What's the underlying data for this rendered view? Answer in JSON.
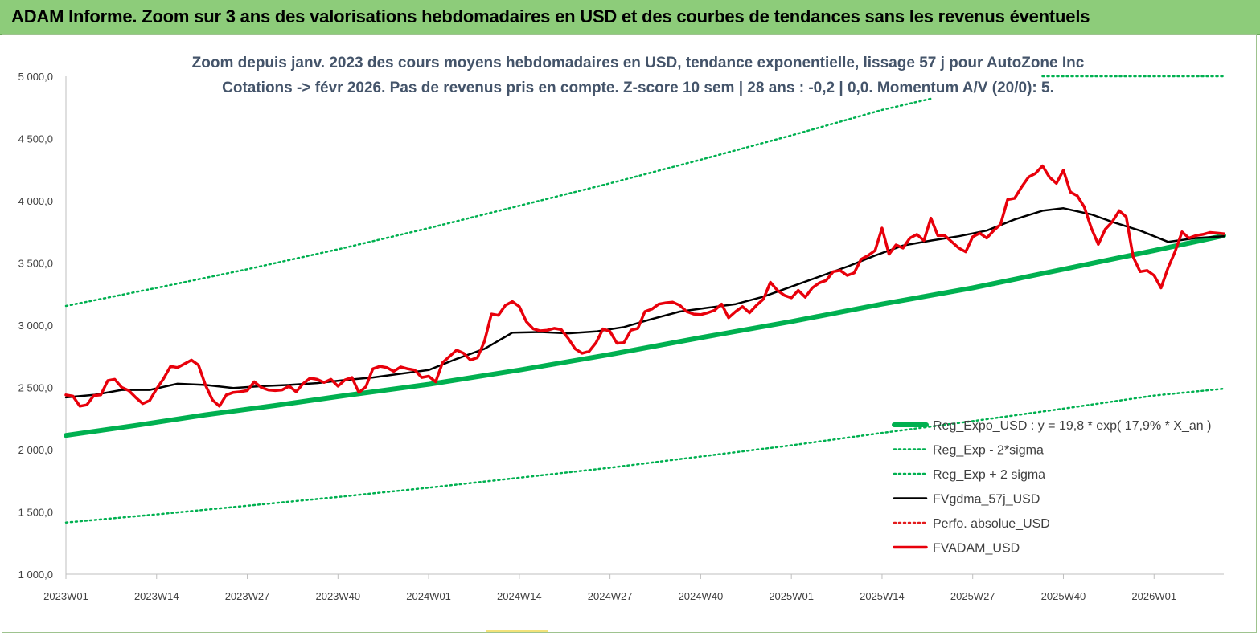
{
  "header": {
    "title": "ADAM Informe. Zoom sur 3 ans des valorisations hebdomadaires en USD et des courbes de tendances sans les revenus éventuels"
  },
  "chart_data": {
    "type": "line",
    "title": "Zoom depuis janv. 2023 des cours moyens hebdomadaires en USD, tendance exponentielle, lissage 57 j pour AutoZone Inc",
    "subtitle": "Cotations -> févr 2026.  Pas de revenus pris en compte. Z-score 10 sem  | 28 ans : -0,2 | 0,0. Momentum A/V (20/0): 5.",
    "xlabel": "",
    "ylabel": "",
    "ylim": [
      1000,
      5000
    ],
    "y_ticks": [
      "1 000,0",
      "1 500,0",
      "2 000,0",
      "2 500,0",
      "3 000,0",
      "3 500,0",
      "4 000,0",
      "4 500,0",
      "5 000,0"
    ],
    "x_range": [
      0,
      166
    ],
    "x_ticks": [
      {
        "i": 0,
        "label": "2023W01"
      },
      {
        "i": 13,
        "label": "2023W14"
      },
      {
        "i": 26,
        "label": "2023W27"
      },
      {
        "i": 39,
        "label": "2023W40"
      },
      {
        "i": 52,
        "label": "2024W01"
      },
      {
        "i": 65,
        "label": "2024W14"
      },
      {
        "i": 78,
        "label": "2024W27"
      },
      {
        "i": 91,
        "label": "2024W40"
      },
      {
        "i": 104,
        "label": "2025W01"
      },
      {
        "i": 117,
        "label": "2025W14"
      },
      {
        "i": 130,
        "label": "2025W27"
      },
      {
        "i": 143,
        "label": "2025W40"
      },
      {
        "i": 156,
        "label": "2026W01"
      }
    ],
    "grid": false,
    "legend_position": "bottom-right",
    "series": [
      {
        "name": "Reg_Expo_USD : y = 19,8 * exp( 17,9% *  X_an )",
        "color": "#00b050",
        "style": "solid-thick",
        "points": [
          [
            0,
            2115
          ],
          [
            10,
            2195
          ],
          [
            20,
            2280
          ],
          [
            30,
            2355
          ],
          [
            40,
            2435
          ],
          [
            52,
            2525
          ],
          [
            65,
            2640
          ],
          [
            78,
            2765
          ],
          [
            91,
            2900
          ],
          [
            104,
            3030
          ],
          [
            117,
            3170
          ],
          [
            130,
            3300
          ],
          [
            143,
            3450
          ],
          [
            156,
            3600
          ],
          [
            166,
            3720
          ]
        ]
      },
      {
        "name": "Reg_Exp - 2*sigma",
        "color": "#00b050",
        "style": "dotted",
        "points": [
          [
            0,
            1415
          ],
          [
            13,
            1480
          ],
          [
            26,
            1550
          ],
          [
            39,
            1620
          ],
          [
            52,
            1695
          ],
          [
            65,
            1775
          ],
          [
            78,
            1855
          ],
          [
            91,
            1945
          ],
          [
            104,
            2035
          ],
          [
            117,
            2135
          ],
          [
            130,
            2230
          ],
          [
            143,
            2330
          ],
          [
            156,
            2435
          ],
          [
            166,
            2490
          ]
        ]
      },
      {
        "name": "Reg_Exp + 2 sigma",
        "color": "#00b050",
        "style": "dotted",
        "points": [
          [
            0,
            3155
          ],
          [
            13,
            3300
          ],
          [
            26,
            3450
          ],
          [
            39,
            3610
          ],
          [
            52,
            3780
          ],
          [
            65,
            3960
          ],
          [
            78,
            4140
          ],
          [
            91,
            4330
          ],
          [
            104,
            4525
          ],
          [
            117,
            4730
          ],
          [
            124,
            4820
          ]
        ],
        "tail": [
          [
            140,
            5000
          ],
          [
            166,
            5000
          ]
        ]
      },
      {
        "name": "FVgdma_57j_USD",
        "color": "#000000",
        "style": "solid",
        "points": [
          [
            0,
            2420
          ],
          [
            4,
            2440
          ],
          [
            8,
            2480
          ],
          [
            12,
            2480
          ],
          [
            16,
            2530
          ],
          [
            20,
            2520
          ],
          [
            24,
            2495
          ],
          [
            28,
            2510
          ],
          [
            32,
            2520
          ],
          [
            36,
            2535
          ],
          [
            40,
            2560
          ],
          [
            44,
            2580
          ],
          [
            48,
            2610
          ],
          [
            52,
            2640
          ],
          [
            56,
            2730
          ],
          [
            60,
            2810
          ],
          [
            64,
            2940
          ],
          [
            68,
            2945
          ],
          [
            72,
            2935
          ],
          [
            76,
            2950
          ],
          [
            80,
            2985
          ],
          [
            84,
            3050
          ],
          [
            88,
            3110
          ],
          [
            92,
            3140
          ],
          [
            96,
            3170
          ],
          [
            100,
            3230
          ],
          [
            104,
            3310
          ],
          [
            108,
            3390
          ],
          [
            112,
            3470
          ],
          [
            116,
            3560
          ],
          [
            120,
            3640
          ],
          [
            124,
            3680
          ],
          [
            128,
            3715
          ],
          [
            132,
            3760
          ],
          [
            136,
            3850
          ],
          [
            140,
            3920
          ],
          [
            143,
            3940
          ],
          [
            147,
            3890
          ],
          [
            150,
            3830
          ],
          [
            154,
            3760
          ],
          [
            158,
            3670
          ],
          [
            162,
            3700
          ],
          [
            166,
            3715
          ]
        ]
      },
      {
        "name": "Perfo. absolue_USD",
        "color": "#e31a1c",
        "style": "dotted",
        "points": []
      },
      {
        "name": "FVADAM_USD",
        "color": "#e8000b",
        "style": "solid-thick",
        "points": [
          [
            0,
            2440
          ],
          [
            1,
            2430
          ],
          [
            2,
            2350
          ],
          [
            3,
            2360
          ],
          [
            4,
            2435
          ],
          [
            5,
            2440
          ],
          [
            6,
            2555
          ],
          [
            7,
            2565
          ],
          [
            8,
            2500
          ],
          [
            9,
            2475
          ],
          [
            10,
            2420
          ],
          [
            11,
            2370
          ],
          [
            12,
            2395
          ],
          [
            13,
            2490
          ],
          [
            14,
            2570
          ],
          [
            15,
            2670
          ],
          [
            16,
            2660
          ],
          [
            17,
            2690
          ],
          [
            18,
            2720
          ],
          [
            19,
            2680
          ],
          [
            20,
            2520
          ],
          [
            21,
            2400
          ],
          [
            22,
            2350
          ],
          [
            23,
            2440
          ],
          [
            24,
            2460
          ],
          [
            25,
            2465
          ],
          [
            26,
            2475
          ],
          [
            27,
            2545
          ],
          [
            28,
            2500
          ],
          [
            29,
            2480
          ],
          [
            30,
            2475
          ],
          [
            31,
            2480
          ],
          [
            32,
            2510
          ],
          [
            33,
            2465
          ],
          [
            34,
            2530
          ],
          [
            35,
            2575
          ],
          [
            36,
            2565
          ],
          [
            37,
            2540
          ],
          [
            38,
            2565
          ],
          [
            39,
            2510
          ],
          [
            40,
            2560
          ],
          [
            41,
            2580
          ],
          [
            42,
            2460
          ],
          [
            43,
            2505
          ],
          [
            44,
            2650
          ],
          [
            45,
            2670
          ],
          [
            46,
            2660
          ],
          [
            47,
            2630
          ],
          [
            48,
            2665
          ],
          [
            49,
            2650
          ],
          [
            50,
            2640
          ],
          [
            51,
            2580
          ],
          [
            52,
            2590
          ],
          [
            53,
            2545
          ],
          [
            54,
            2700
          ],
          [
            55,
            2750
          ],
          [
            56,
            2800
          ],
          [
            57,
            2775
          ],
          [
            58,
            2720
          ],
          [
            59,
            2740
          ],
          [
            60,
            2870
          ],
          [
            61,
            3090
          ],
          [
            62,
            3080
          ],
          [
            63,
            3160
          ],
          [
            64,
            3190
          ],
          [
            65,
            3150
          ],
          [
            66,
            3030
          ],
          [
            67,
            2970
          ],
          [
            68,
            2955
          ],
          [
            69,
            2960
          ],
          [
            70,
            2975
          ],
          [
            71,
            2965
          ],
          [
            72,
            2895
          ],
          [
            73,
            2810
          ],
          [
            74,
            2775
          ],
          [
            75,
            2790
          ],
          [
            76,
            2860
          ],
          [
            77,
            2970
          ],
          [
            78,
            2950
          ],
          [
            79,
            2855
          ],
          [
            80,
            2860
          ],
          [
            81,
            2960
          ],
          [
            82,
            2975
          ],
          [
            83,
            3110
          ],
          [
            84,
            3130
          ],
          [
            85,
            3170
          ],
          [
            86,
            3180
          ],
          [
            87,
            3185
          ],
          [
            88,
            3160
          ],
          [
            89,
            3110
          ],
          [
            90,
            3090
          ],
          [
            91,
            3085
          ],
          [
            92,
            3100
          ],
          [
            93,
            3120
          ],
          [
            94,
            3170
          ],
          [
            95,
            3060
          ],
          [
            96,
            3110
          ],
          [
            97,
            3150
          ],
          [
            98,
            3100
          ],
          [
            99,
            3160
          ],
          [
            100,
            3210
          ],
          [
            101,
            3345
          ],
          [
            102,
            3280
          ],
          [
            103,
            3240
          ],
          [
            104,
            3220
          ],
          [
            105,
            3280
          ],
          [
            106,
            3225
          ],
          [
            107,
            3300
          ],
          [
            108,
            3340
          ],
          [
            109,
            3360
          ],
          [
            110,
            3430
          ],
          [
            111,
            3440
          ],
          [
            112,
            3400
          ],
          [
            113,
            3420
          ],
          [
            114,
            3530
          ],
          [
            115,
            3560
          ],
          [
            116,
            3600
          ],
          [
            117,
            3780
          ],
          [
            118,
            3570
          ],
          [
            119,
            3645
          ],
          [
            120,
            3620
          ],
          [
            121,
            3700
          ],
          [
            122,
            3730
          ],
          [
            123,
            3680
          ],
          [
            124,
            3860
          ],
          [
            125,
            3720
          ],
          [
            126,
            3720
          ],
          [
            127,
            3670
          ],
          [
            128,
            3620
          ],
          [
            129,
            3590
          ],
          [
            130,
            3710
          ],
          [
            131,
            3740
          ],
          [
            132,
            3700
          ],
          [
            133,
            3760
          ],
          [
            134,
            3810
          ],
          [
            135,
            4010
          ],
          [
            136,
            4020
          ],
          [
            137,
            4110
          ],
          [
            138,
            4190
          ],
          [
            139,
            4220
          ],
          [
            140,
            4280
          ],
          [
            141,
            4190
          ],
          [
            142,
            4140
          ],
          [
            143,
            4245
          ],
          [
            144,
            4070
          ],
          [
            145,
            4040
          ],
          [
            146,
            3950
          ],
          [
            147,
            3780
          ],
          [
            148,
            3650
          ],
          [
            149,
            3770
          ],
          [
            150,
            3830
          ],
          [
            151,
            3920
          ],
          [
            152,
            3870
          ],
          [
            153,
            3550
          ],
          [
            154,
            3430
          ],
          [
            155,
            3440
          ],
          [
            156,
            3400
          ],
          [
            157,
            3300
          ],
          [
            158,
            3460
          ],
          [
            159,
            3590
          ],
          [
            160,
            3750
          ],
          [
            161,
            3700
          ],
          [
            162,
            3720
          ],
          [
            163,
            3730
          ],
          [
            164,
            3745
          ],
          [
            165,
            3740
          ],
          [
            166,
            3735
          ]
        ]
      }
    ]
  }
}
